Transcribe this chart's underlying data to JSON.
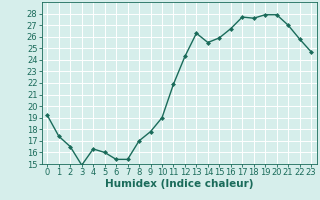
{
  "xlabel": "Humidex (Indice chaleur)",
  "ylabel": "",
  "x": [
    0,
    1,
    2,
    3,
    4,
    5,
    6,
    7,
    8,
    9,
    10,
    11,
    12,
    13,
    14,
    15,
    16,
    17,
    18,
    19,
    20,
    21,
    22,
    23
  ],
  "y": [
    19.2,
    17.4,
    16.5,
    14.9,
    16.3,
    16.0,
    15.4,
    15.4,
    17.0,
    17.8,
    19.0,
    21.9,
    24.3,
    26.3,
    25.5,
    25.9,
    26.7,
    27.7,
    27.6,
    27.9,
    27.9,
    27.0,
    25.8,
    24.7
  ],
  "line_color": "#1a6b5a",
  "marker": "D",
  "marker_size": 2.0,
  "bg_color": "#d6eeeb",
  "grid_color": "#ffffff",
  "ylim": [
    15,
    29
  ],
  "xlim": [
    -0.5,
    23.5
  ],
  "yticks": [
    15,
    16,
    17,
    18,
    19,
    20,
    21,
    22,
    23,
    24,
    25,
    26,
    27,
    28
  ],
  "xticks": [
    0,
    1,
    2,
    3,
    4,
    5,
    6,
    7,
    8,
    9,
    10,
    11,
    12,
    13,
    14,
    15,
    16,
    17,
    18,
    19,
    20,
    21,
    22,
    23
  ],
  "tick_fontsize": 6.0,
  "xlabel_fontsize": 7.5,
  "linewidth": 1.0
}
